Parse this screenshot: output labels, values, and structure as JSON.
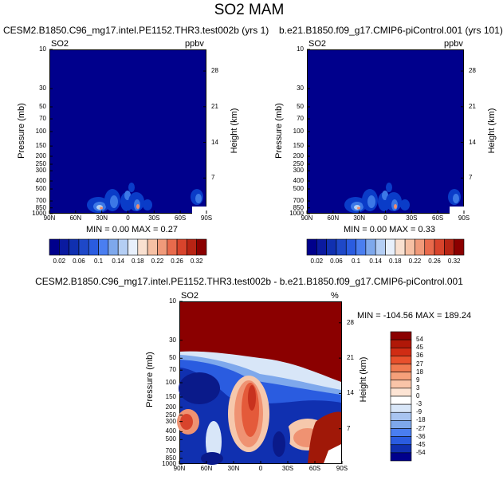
{
  "page": {
    "title": "SO2 MAM",
    "diff_title": "CESM2.B1850.C96_mg17.intel.PE1152.THR3.test002b - b.e21.B1850.f09_g17.CMIP6-piControl.001"
  },
  "colors": {
    "deep_blue": "#00008c",
    "dark_red": "#8b0000"
  },
  "chart_data": [
    {
      "type": "heatmap",
      "title": "CESM2.B1850.C96_mg17.intel.PE1152.THR3.test002b (yrs 1)",
      "variable_label": "SO2",
      "units_label": "ppbv",
      "ylabel": "Pressure (mb)",
      "y2label": "Height (km)",
      "x_ticks": [
        "90N",
        "60N",
        "30N",
        "0",
        "30S",
        "60S",
        "90S"
      ],
      "y_ticks": [
        "10",
        "30",
        "50",
        "70",
        "100",
        "150",
        "200",
        "250",
        "300",
        "400",
        "500",
        "700",
        "850",
        "1000"
      ],
      "y2_ticks": [
        "28",
        "21",
        "14",
        "7"
      ],
      "stats": "MIN =   0.00   MAX =  0.27",
      "min": 0.0,
      "max": 0.27,
      "colorbar_labels": [
        "0.02",
        "0.06",
        "0.1",
        "0.14",
        "0.18",
        "0.22",
        "0.26",
        "0.32"
      ]
    },
    {
      "type": "heatmap",
      "title": "b.e21.B1850.f09_g17.CMIP6-piControl.001 (yrs 101)",
      "variable_label": "SO2",
      "units_label": "ppbv",
      "ylabel": "Pressure (mb)",
      "y2label": "Height (km)",
      "x_ticks": [
        "90N",
        "60N",
        "30N",
        "0",
        "30S",
        "60S",
        "90S"
      ],
      "y_ticks": [
        "10",
        "30",
        "50",
        "70",
        "100",
        "150",
        "200",
        "250",
        "300",
        "400",
        "500",
        "700",
        "850",
        "1000"
      ],
      "y2_ticks": [
        "28",
        "21",
        "14",
        "7"
      ],
      "stats": "MIN =   0.00   MAX =  0.33",
      "min": 0.0,
      "max": 0.33,
      "colorbar_labels": [
        "0.02",
        "0.06",
        "0.1",
        "0.14",
        "0.18",
        "0.22",
        "0.26",
        "0.32"
      ]
    },
    {
      "type": "heatmap",
      "title": "CESM2.B1850.C96_mg17.intel.PE1152.THR3.test002b - b.e21.B1850.f09_g17.CMIP6-piControl.001",
      "variable_label": "SO2",
      "units_label": "%",
      "ylabel": "Pressure (mb)",
      "y2label": "Height (km)",
      "x_ticks": [
        "90N",
        "60N",
        "30N",
        "0",
        "30S",
        "60S",
        "90S"
      ],
      "y_ticks": [
        "10",
        "30",
        "50",
        "70",
        "100",
        "150",
        "200",
        "250",
        "300",
        "400",
        "500",
        "700",
        "850",
        "1000"
      ],
      "y2_ticks": [
        "28",
        "21",
        "14",
        "7"
      ],
      "stats": "MIN = -104.56   MAX = 189.24",
      "min": -104.56,
      "max": 189.24,
      "colorbar_labels": [
        "54",
        "45",
        "36",
        "27",
        "18",
        "9",
        "3",
        "0",
        "-3",
        "-9",
        "-18",
        "-27",
        "-36",
        "-45",
        "-54"
      ]
    }
  ]
}
